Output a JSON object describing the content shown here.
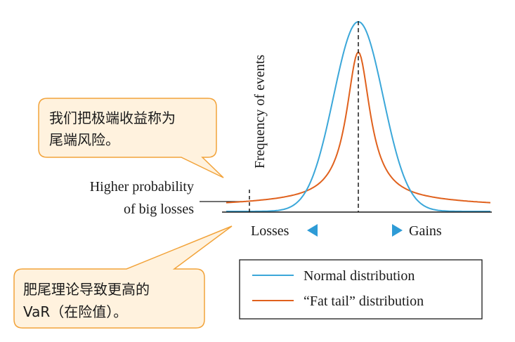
{
  "callout_top": {
    "line1": "我们把极端收益称为",
    "line2": "尾端风险。",
    "fill": "#FFF2DE",
    "stroke": "#F2A33A"
  },
  "callout_bottom": {
    "line1": "肥尾理论导致更高的",
    "line2": "VaR（在险值）。",
    "fill": "#FFF2DE",
    "stroke": "#F2A33A"
  },
  "y_axis_label": "Frequency of events",
  "annotation": {
    "line1": "Higher probability",
    "line2": "of big losses"
  },
  "axis": {
    "losses_label": "Losses",
    "gains_label": "Gains",
    "arrow_color": "#2E9BD6"
  },
  "legend": {
    "entries": [
      {
        "label": "Normal distribution",
        "color": "#3BA7D9"
      },
      {
        "label": "“Fat tail” distribution",
        "color": "#E0611D"
      }
    ]
  },
  "chart_data": {
    "type": "line",
    "series": [
      {
        "name": "Normal distribution",
        "color": "#3BA7D9",
        "shape": "normal",
        "peak": 1.0,
        "spread": 0.75
      },
      {
        "name": "“Fat tail” distribution",
        "color": "#E0611D",
        "shape": "fat-tail",
        "peak": 0.84,
        "spread": 1.0
      }
    ],
    "x": {
      "min": -4,
      "max": 4,
      "center": 0
    },
    "y": {
      "min": 0,
      "max": 1
    },
    "mean_line": "dashed"
  }
}
